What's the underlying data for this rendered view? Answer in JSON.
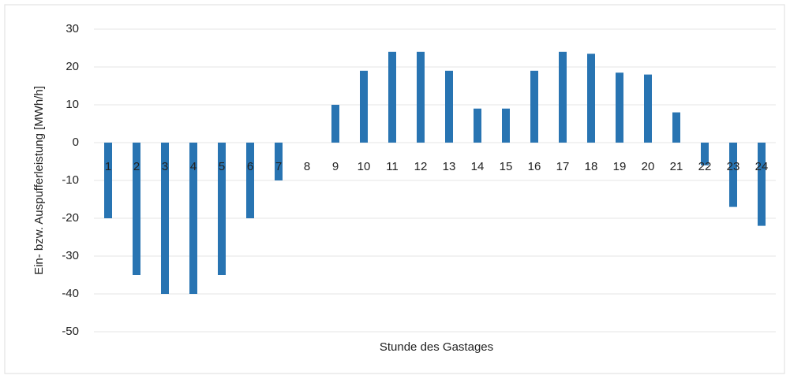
{
  "chart_data": {
    "type": "bar",
    "y_label": "Ein- bzw. Auspufferleistung [MWh/h]",
    "x_label": "Stunde des Gastages",
    "categories": [
      "1",
      "2",
      "3",
      "4",
      "5",
      "6",
      "7",
      "8",
      "9",
      "10",
      "11",
      "12",
      "13",
      "14",
      "15",
      "16",
      "17",
      "18",
      "19",
      "20",
      "21",
      "22",
      "23",
      "24"
    ],
    "values": [
      -20,
      -35,
      -40,
      -40,
      -35,
      -20,
      -10,
      0,
      10,
      19,
      24,
      24,
      19,
      9,
      9,
      19,
      24,
      23.5,
      18.5,
      18,
      8,
      -6,
      -17,
      -22
    ],
    "color": "#2874b2",
    "ylim": [
      -50,
      30
    ],
    "yticks": [
      -50,
      -40,
      -30,
      -20,
      -10,
      0,
      10,
      20,
      30
    ],
    "grid": true
  }
}
